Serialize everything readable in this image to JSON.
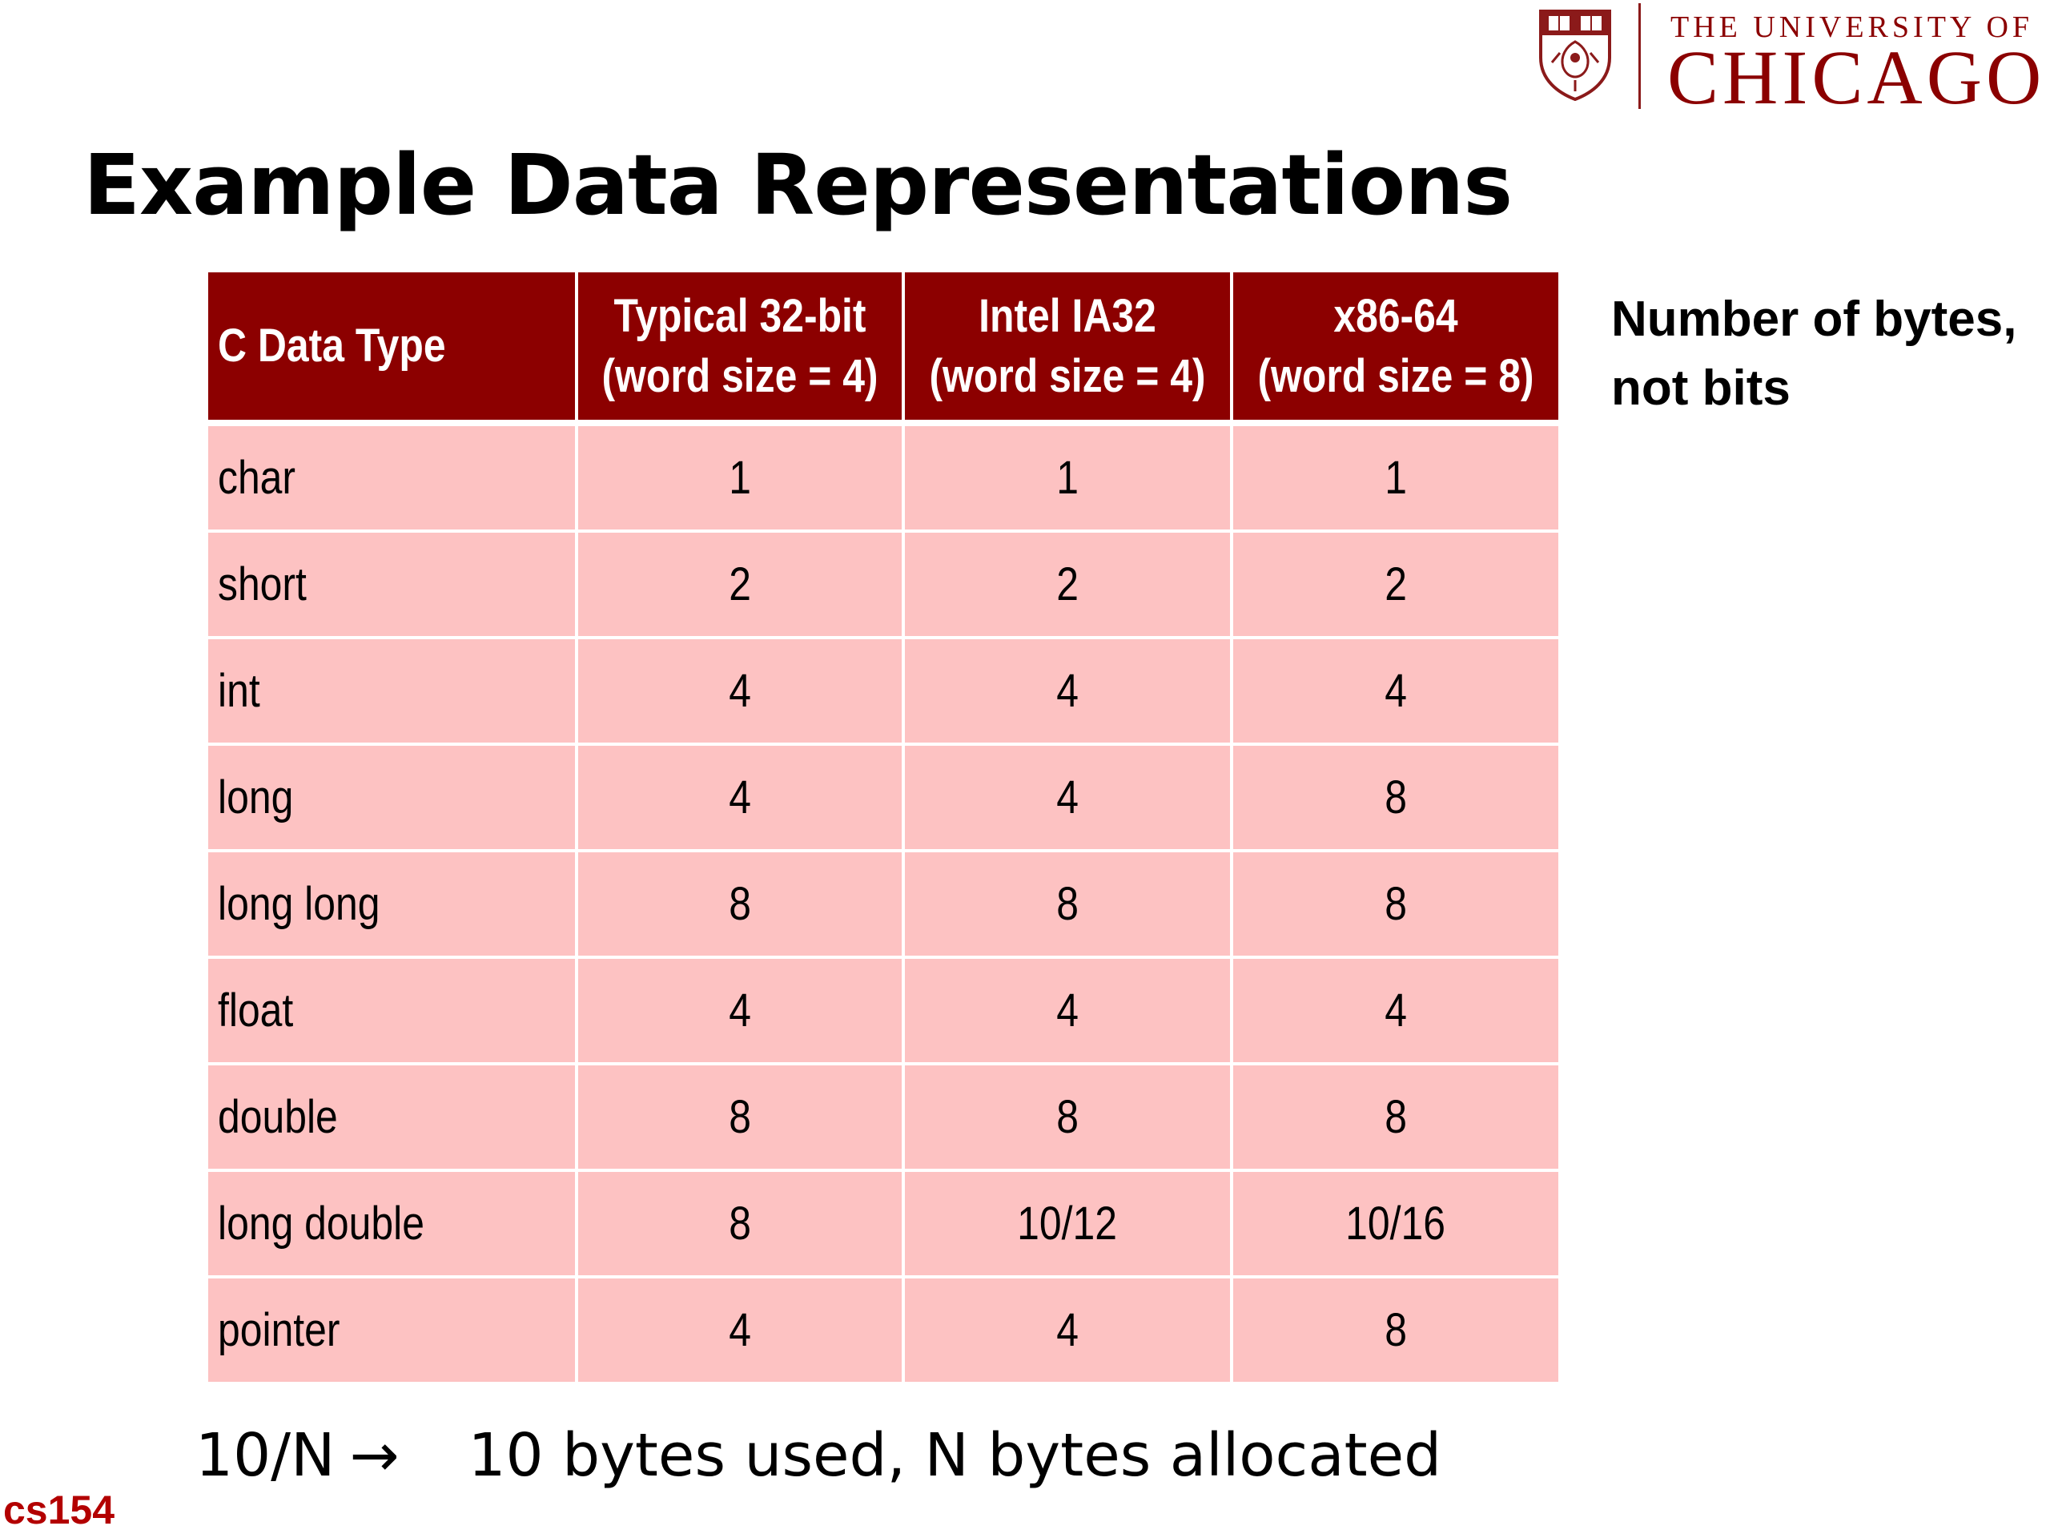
{
  "logo": {
    "line1": "THE UNIVERSITY OF",
    "line2": "CHICAGO",
    "color": "#8b0000",
    "crest_icon": "university-crest-icon"
  },
  "title": "Example Data Representations",
  "table": {
    "headers": [
      {
        "line1": "C Data Type",
        "line2": ""
      },
      {
        "line1": "Typical 32-bit",
        "line2": "(word size = 4)"
      },
      {
        "line1": "Intel IA32",
        "line2": "(word size = 4)"
      },
      {
        "line1": "x86-64",
        "line2": "(word size = 8)"
      }
    ],
    "rows": [
      [
        "char",
        "1",
        "1",
        "1"
      ],
      [
        "short",
        "2",
        "2",
        "2"
      ],
      [
        "int",
        "4",
        "4",
        "4"
      ],
      [
        "long",
        "4",
        "4",
        "8"
      ],
      [
        "long long",
        "8",
        "8",
        "8"
      ],
      [
        "float",
        "4",
        "4",
        "4"
      ],
      [
        "double",
        "8",
        "8",
        "8"
      ],
      [
        "long double",
        "8",
        "10/12",
        "10/16"
      ],
      [
        "pointer",
        "4",
        "4",
        "8"
      ]
    ],
    "header_color": "#8c0000",
    "cell_color": "#fdc2c2"
  },
  "side_note": {
    "line1": "Number of bytes,",
    "line2": "not bits"
  },
  "footnote": {
    "key": "10/N",
    "arrow": "→",
    "text": "10 bytes used, N bytes allocated"
  },
  "course_label": "cs154"
}
